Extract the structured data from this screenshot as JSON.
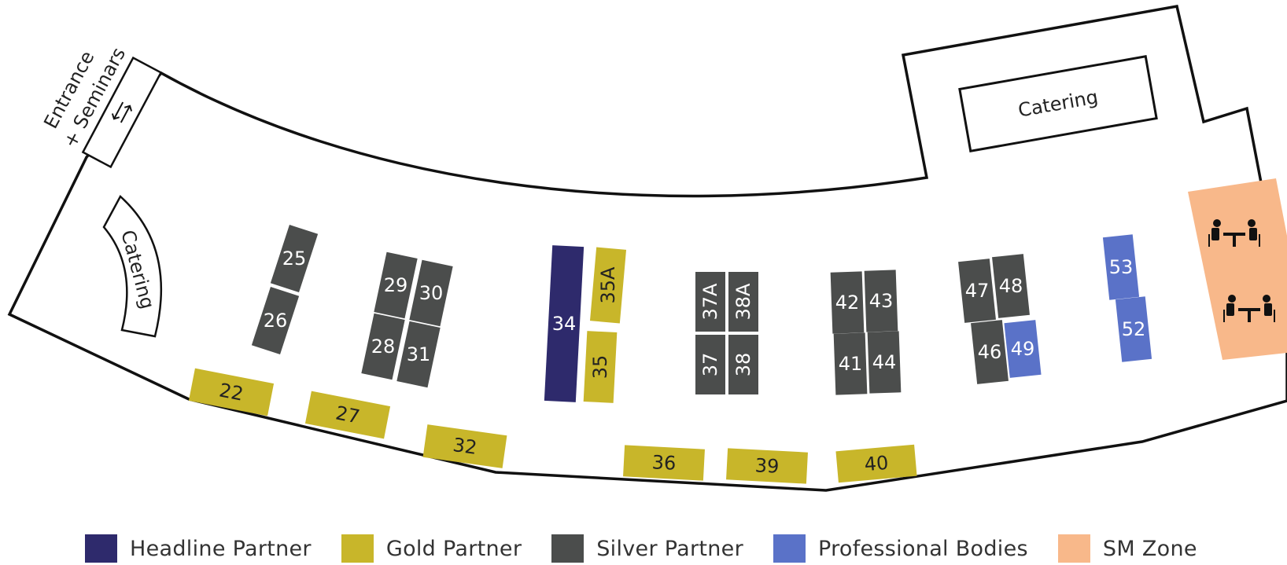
{
  "colors": {
    "headline": "#2e2a6c",
    "gold": "#c8b62a",
    "silver": "#4b4d4c",
    "professional": "#5a72c8",
    "smzone": "#f8b88a",
    "outline": "#111111"
  },
  "areas": {
    "entrance": "Entrance",
    "seminars": "+ Seminars",
    "catering_left": "Catering",
    "catering_right": "Catering",
    "entrance_arrows_icon": "double-arrow-icon",
    "table_icon": "people-at-table-icon"
  },
  "booths": [
    {
      "id": "34",
      "category": "headline"
    },
    {
      "id": "35A",
      "category": "gold"
    },
    {
      "id": "35",
      "category": "gold"
    },
    {
      "id": "22",
      "category": "gold"
    },
    {
      "id": "27",
      "category": "gold"
    },
    {
      "id": "32",
      "category": "gold"
    },
    {
      "id": "36",
      "category": "gold"
    },
    {
      "id": "39",
      "category": "gold"
    },
    {
      "id": "40",
      "category": "gold"
    },
    {
      "id": "25",
      "category": "silver"
    },
    {
      "id": "26",
      "category": "silver"
    },
    {
      "id": "29",
      "category": "silver"
    },
    {
      "id": "30",
      "category": "silver"
    },
    {
      "id": "28",
      "category": "silver"
    },
    {
      "id": "31",
      "category": "silver"
    },
    {
      "id": "37A",
      "category": "silver"
    },
    {
      "id": "38A",
      "category": "silver"
    },
    {
      "id": "37",
      "category": "silver"
    },
    {
      "id": "38",
      "category": "silver"
    },
    {
      "id": "42",
      "category": "silver"
    },
    {
      "id": "43",
      "category": "silver"
    },
    {
      "id": "41",
      "category": "silver"
    },
    {
      "id": "44",
      "category": "silver"
    },
    {
      "id": "47",
      "category": "silver"
    },
    {
      "id": "48",
      "category": "silver"
    },
    {
      "id": "46",
      "category": "silver"
    },
    {
      "id": "49",
      "category": "professional"
    },
    {
      "id": "53",
      "category": "professional"
    },
    {
      "id": "52",
      "category": "professional"
    }
  ],
  "legend": [
    {
      "label": "Headline Partner",
      "category": "headline"
    },
    {
      "label": "Gold Partner",
      "category": "gold"
    },
    {
      "label": "Silver Partner",
      "category": "silver"
    },
    {
      "label": "Professional Bodies",
      "category": "professional"
    },
    {
      "label": "SM Zone",
      "category": "smzone"
    }
  ]
}
